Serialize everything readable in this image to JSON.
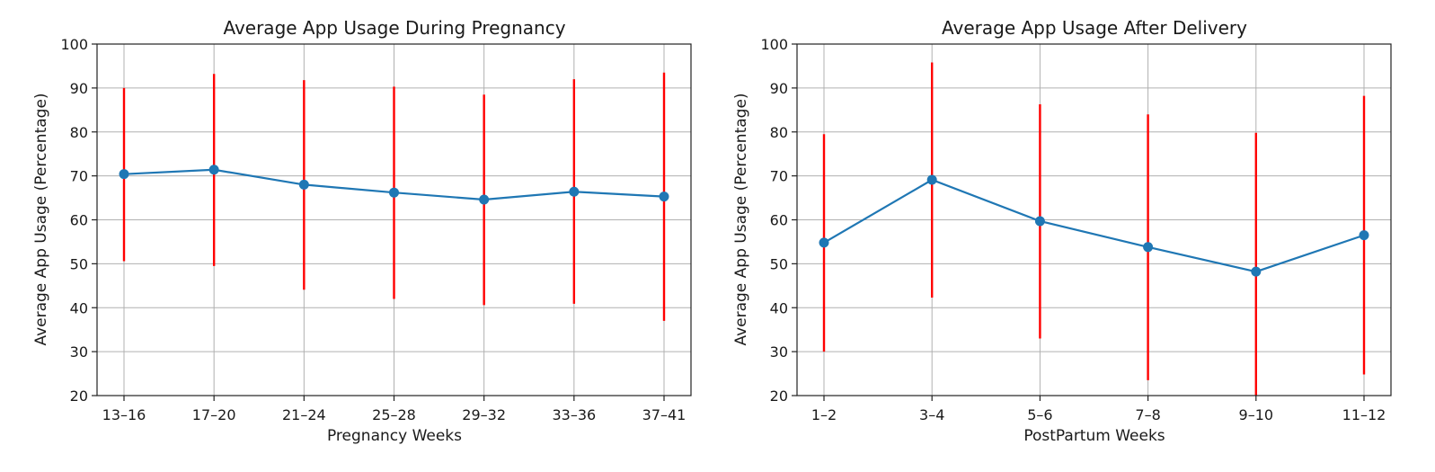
{
  "chart_data": [
    {
      "type": "line",
      "title": "Average App Usage During Pregnancy",
      "xlabel": "Pregnancy Weeks",
      "ylabel": "Average App Usage (Percentage)",
      "categories": [
        "13–16",
        "17–20",
        "21–24",
        "25–28",
        "29–32",
        "33–36",
        "37–41"
      ],
      "series": [
        {
          "name": "Average App Usage",
          "values": [
            70.4,
            71.4,
            68.0,
            66.2,
            64.6,
            66.4,
            65.3
          ],
          "error_low": [
            50.6,
            49.5,
            44.1,
            42.0,
            40.6,
            40.9,
            37.0
          ],
          "error_high": [
            90.0,
            93.2,
            91.8,
            90.3,
            88.5,
            92.0,
            93.5
          ]
        }
      ],
      "ylim": [
        20,
        100
      ],
      "yticks": [
        20,
        30,
        40,
        50,
        60,
        70,
        80,
        90,
        100
      ],
      "grid": true,
      "line_color": "#1f77b4",
      "error_color": "#ff0000"
    },
    {
      "type": "line",
      "title": "Average App Usage After Delivery",
      "xlabel": "PostPartum Weeks",
      "ylabel": "Average App Usage (Percentage)",
      "categories": [
        "1–2",
        "3–4",
        "5–6",
        "7–8",
        "9–10",
        "11–12"
      ],
      "series": [
        {
          "name": "Average App Usage",
          "values": [
            54.8,
            69.1,
            59.7,
            53.8,
            48.2,
            56.5
          ],
          "error_low": [
            30.0,
            42.3,
            33.0,
            23.5,
            20.0,
            24.8
          ],
          "error_high": [
            79.5,
            95.8,
            86.3,
            84.0,
            79.8,
            88.2
          ]
        }
      ],
      "ylim": [
        20,
        100
      ],
      "yticks": [
        20,
        30,
        40,
        50,
        60,
        70,
        80,
        90,
        100
      ],
      "grid": true,
      "line_color": "#1f77b4",
      "error_color": "#ff0000"
    }
  ]
}
